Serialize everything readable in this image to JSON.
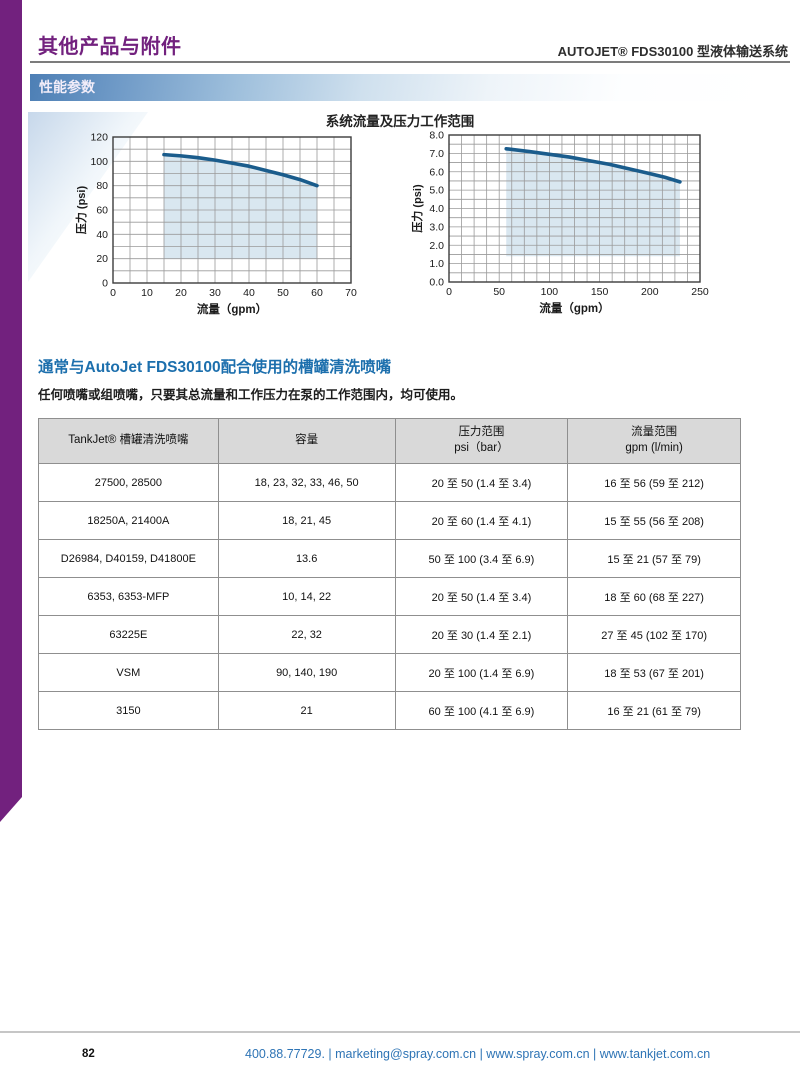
{
  "header": {
    "section_title": "其他产品与附件",
    "product_title": "AUTOJET® FDS30100 型液体输送系统"
  },
  "band": {
    "label": "性能参数"
  },
  "nozzle_section": {
    "title": "通常与AutoJet FDS30100配合使用的槽罐清洗喷嘴",
    "note": "任何喷嘴或组喷嘴，只要其总流量和工作压力在泵的工作范围内，均可使用。"
  },
  "table": {
    "headers": [
      "TankJet® 槽罐清洗喷嘴",
      "容量",
      "压力范围\npsi（bar）",
      "流量范围\ngpm (l/min)"
    ],
    "rows": [
      [
        "27500, 28500",
        "18, 23, 32, 33, 46, 50",
        "20 至 50 (1.4 至 3.4)",
        "16 至 56 (59 至 212)"
      ],
      [
        "18250A, 21400A",
        "18, 21, 45",
        "20 至 60 (1.4 至 4.1)",
        "15 至 55 (56 至 208)"
      ],
      [
        "D26984, D40159, D41800E",
        "13.6",
        "50 至 100 (3.4 至 6.9)",
        "15 至 21 (57 至 79)"
      ],
      [
        "6353, 6353-MFP",
        "10, 14, 22",
        "20 至 50 (1.4 至 3.4)",
        "18 至 60 (68 至 227)"
      ],
      [
        "63225E",
        "22, 32",
        "20 至 30 (1.4 至 2.1)",
        "27 至 45 (102 至 170)"
      ],
      [
        "VSM",
        "90, 140, 190",
        "20 至 100 (1.4 至 6.9)",
        "18 至 53 (67 至 201)"
      ],
      [
        "3150",
        "21",
        "60 至 100 (4.1 至 6.9)",
        "16 至 21 (61 至 79)"
      ]
    ]
  },
  "footer": {
    "page_number": "82",
    "contact": "400.88.77729. | marketing@spray.com.cn | www.spray.com.cn | www.tankjet.com.cn"
  },
  "colors": {
    "brand_purple": "#72217e",
    "section_blue": "#1c6fad",
    "footer_blue": "#2e74b5",
    "curve_blue": "#1a5c8c",
    "region_fill": "#d9e7f0"
  },
  "chart_data": [
    {
      "type": "area",
      "title": "系统流量及压力工作范围",
      "xlabel": "流量（gpm）",
      "ylabel": "压力 (psi)",
      "xlim": [
        0,
        70
      ],
      "ylim": [
        0,
        120
      ],
      "x_major": 10,
      "x_minor": 5,
      "y_major": 20,
      "y_minor": 10,
      "y_decimals": 0,
      "grid": true,
      "curve": [
        [
          15,
          105.5
        ],
        [
          20,
          104.5
        ],
        [
          25,
          103
        ],
        [
          30,
          101
        ],
        [
          35,
          98.5
        ],
        [
          40,
          96
        ],
        [
          45,
          92.5
        ],
        [
          50,
          89
        ],
        [
          55,
          85
        ],
        [
          60,
          80
        ]
      ],
      "fill_baseline": 20,
      "line_color": "#1a5c8c",
      "fill_color": "#d9e7f0"
    },
    {
      "type": "area",
      "title": "",
      "xlabel": "流量（gpm）",
      "ylabel": "压力 (psi)",
      "xlim": [
        0,
        250
      ],
      "ylim": [
        0,
        8
      ],
      "x_major": 50,
      "x_minor": 12.5,
      "y_major": 1,
      "y_minor": 0.5,
      "y_decimals": 1,
      "grid": true,
      "curve": [
        [
          57,
          7.25
        ],
        [
          80,
          7.1
        ],
        [
          100,
          6.95
        ],
        [
          120,
          6.8
        ],
        [
          140,
          6.6
        ],
        [
          160,
          6.4
        ],
        [
          180,
          6.15
        ],
        [
          200,
          5.9
        ],
        [
          215,
          5.7
        ],
        [
          230,
          5.45
        ]
      ],
      "fill_baseline": 1.4,
      "line_color": "#1a5c8c",
      "fill_color": "#d9e7f0"
    }
  ]
}
